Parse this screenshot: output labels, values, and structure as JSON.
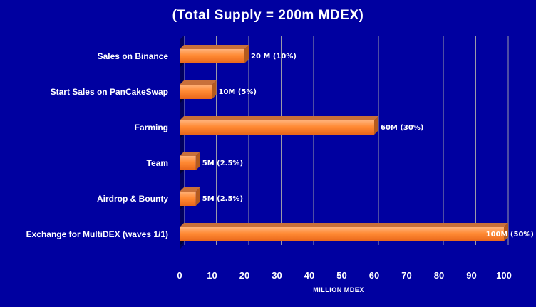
{
  "chart_data": {
    "type": "bar",
    "orientation": "horizontal",
    "title": "(Total Supply = 200m MDEX)",
    "xlabel": "MILLION MDEX",
    "ylabel": "",
    "xlim": [
      0,
      100
    ],
    "xticks": [
      0,
      10,
      20,
      30,
      40,
      50,
      60,
      70,
      80,
      90,
      100
    ],
    "grid": "vertical",
    "legend": "none",
    "categories": [
      "Sales on Binance",
      "Start Sales on PanCakeSwap",
      "Farming",
      "Team",
      "Airdrop & Bounty",
      "Exchange for MultiDEX (waves 1/1)"
    ],
    "values": [
      20,
      10,
      60,
      5,
      5,
      100
    ],
    "data_labels": [
      "20 M (10%)",
      "10M (5%)",
      "60M (30%)",
      "5M (2.5%)",
      "5M (2.5%)",
      "100M (50%)"
    ],
    "colors": {
      "background": "#0000a0",
      "bar_front": "#ff8a33",
      "bar_top": "#c8703a",
      "bar_side": "#b45a1e",
      "grid": "#9a9aa8",
      "text": "#ffffff"
    }
  }
}
